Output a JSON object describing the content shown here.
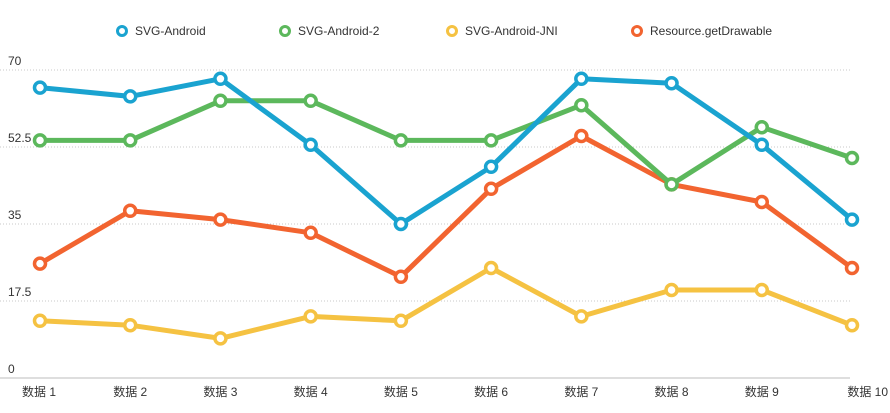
{
  "chart_data": {
    "type": "line",
    "categories": [
      "数据 1",
      "数据 2",
      "数据 3",
      "数据 4",
      "数据 5",
      "数据 6",
      "数据 7",
      "数据 8",
      "数据 9",
      "数据 10"
    ],
    "y_ticks": [
      "0",
      "17.5",
      "35",
      "52.5",
      "70"
    ],
    "ylim": [
      0,
      70
    ],
    "grid": true,
    "legend_position": "top",
    "series": [
      {
        "name": "SVG-Android",
        "color": "#1aa3d0",
        "values": [
          66,
          64,
          68,
          53,
          35,
          48,
          68,
          67,
          53,
          36
        ]
      },
      {
        "name": "SVG-Android-2",
        "color": "#5cb85c",
        "values": [
          54,
          54,
          63,
          63,
          54,
          54,
          62,
          44,
          57,
          50
        ]
      },
      {
        "name": "SVG-Android-JNI",
        "color": "#f5c242",
        "values": [
          13,
          12,
          9,
          14,
          13,
          25,
          14,
          20,
          20,
          12
        ]
      },
      {
        "name": "Resource.getDrawable",
        "color": "#f26430",
        "values": [
          26,
          38,
          36,
          33,
          23,
          43,
          55,
          44,
          40,
          25
        ]
      }
    ]
  }
}
